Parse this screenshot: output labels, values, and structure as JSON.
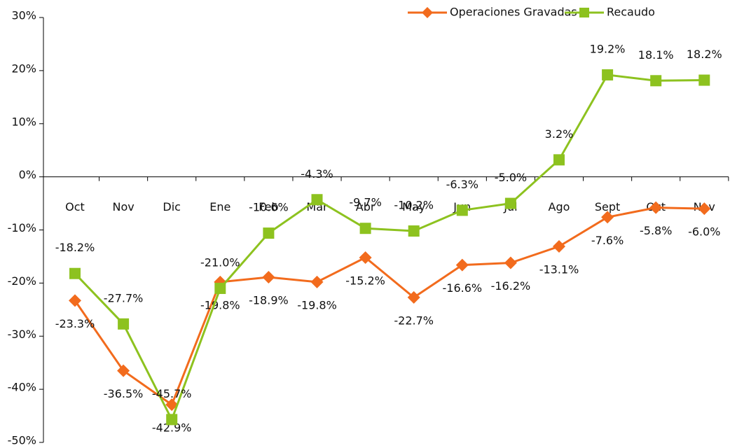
{
  "chart_data": {
    "type": "line",
    "categories": [
      "Oct",
      "Nov",
      "Dic",
      "Ene",
      "Feb",
      "Mar",
      "Abr",
      "May",
      "Jun",
      "Jul",
      "Ago",
      "Sept",
      "Oct",
      "Nov"
    ],
    "series": [
      {
        "name": "Operaciones Gravadas",
        "color": "#f26b1d",
        "marker": "diamond",
        "values": [
          -23.3,
          -36.5,
          -42.9,
          -19.8,
          -18.9,
          -19.8,
          -15.2,
          -22.7,
          -16.6,
          -16.2,
          -13.1,
          -7.6,
          -5.8,
          -6.0
        ],
        "value_labels": [
          "-23.3%",
          "-36.5%",
          "-42.9%",
          "-19.8%",
          "-18.9%",
          "-19.8%",
          "-15.2%",
          "-22.7%",
          "-16.6%",
          "-16.2%",
          "-13.1%",
          "-7.6%",
          "-5.8%",
          "-6.0%"
        ]
      },
      {
        "name": "Recaudo",
        "color": "#8dc21f",
        "marker": "square",
        "values": [
          -18.2,
          -27.7,
          -45.7,
          -21.0,
          -10.6,
          -4.3,
          -9.7,
          -10.2,
          -6.3,
          -5.0,
          3.2,
          19.2,
          18.1,
          18.2
        ],
        "value_labels": [
          "-18.2%",
          "-27.7%",
          "-45.7%",
          "-21.0%",
          "-10.6%",
          "-4.3%",
          "-9.7%",
          "-10.2%",
          "-6.3%",
          "-5.0%",
          "3.2%",
          "19.2%",
          "18.1%",
          "18.2%"
        ]
      }
    ],
    "ylim": [
      -50,
      30
    ],
    "yticks": [
      {
        "value": -50,
        "label": "-50%"
      },
      {
        "value": -40,
        "label": "-40%"
      },
      {
        "value": -30,
        "label": "-30%"
      },
      {
        "value": -20,
        "label": "-20%"
      },
      {
        "value": -10,
        "label": "-10%"
      },
      {
        "value": 0,
        "label": "0%"
      },
      {
        "value": 10,
        "label": "10%"
      },
      {
        "value": 20,
        "label": "20%"
      },
      {
        "value": 30,
        "label": "30%"
      }
    ],
    "legend": "top-right"
  }
}
